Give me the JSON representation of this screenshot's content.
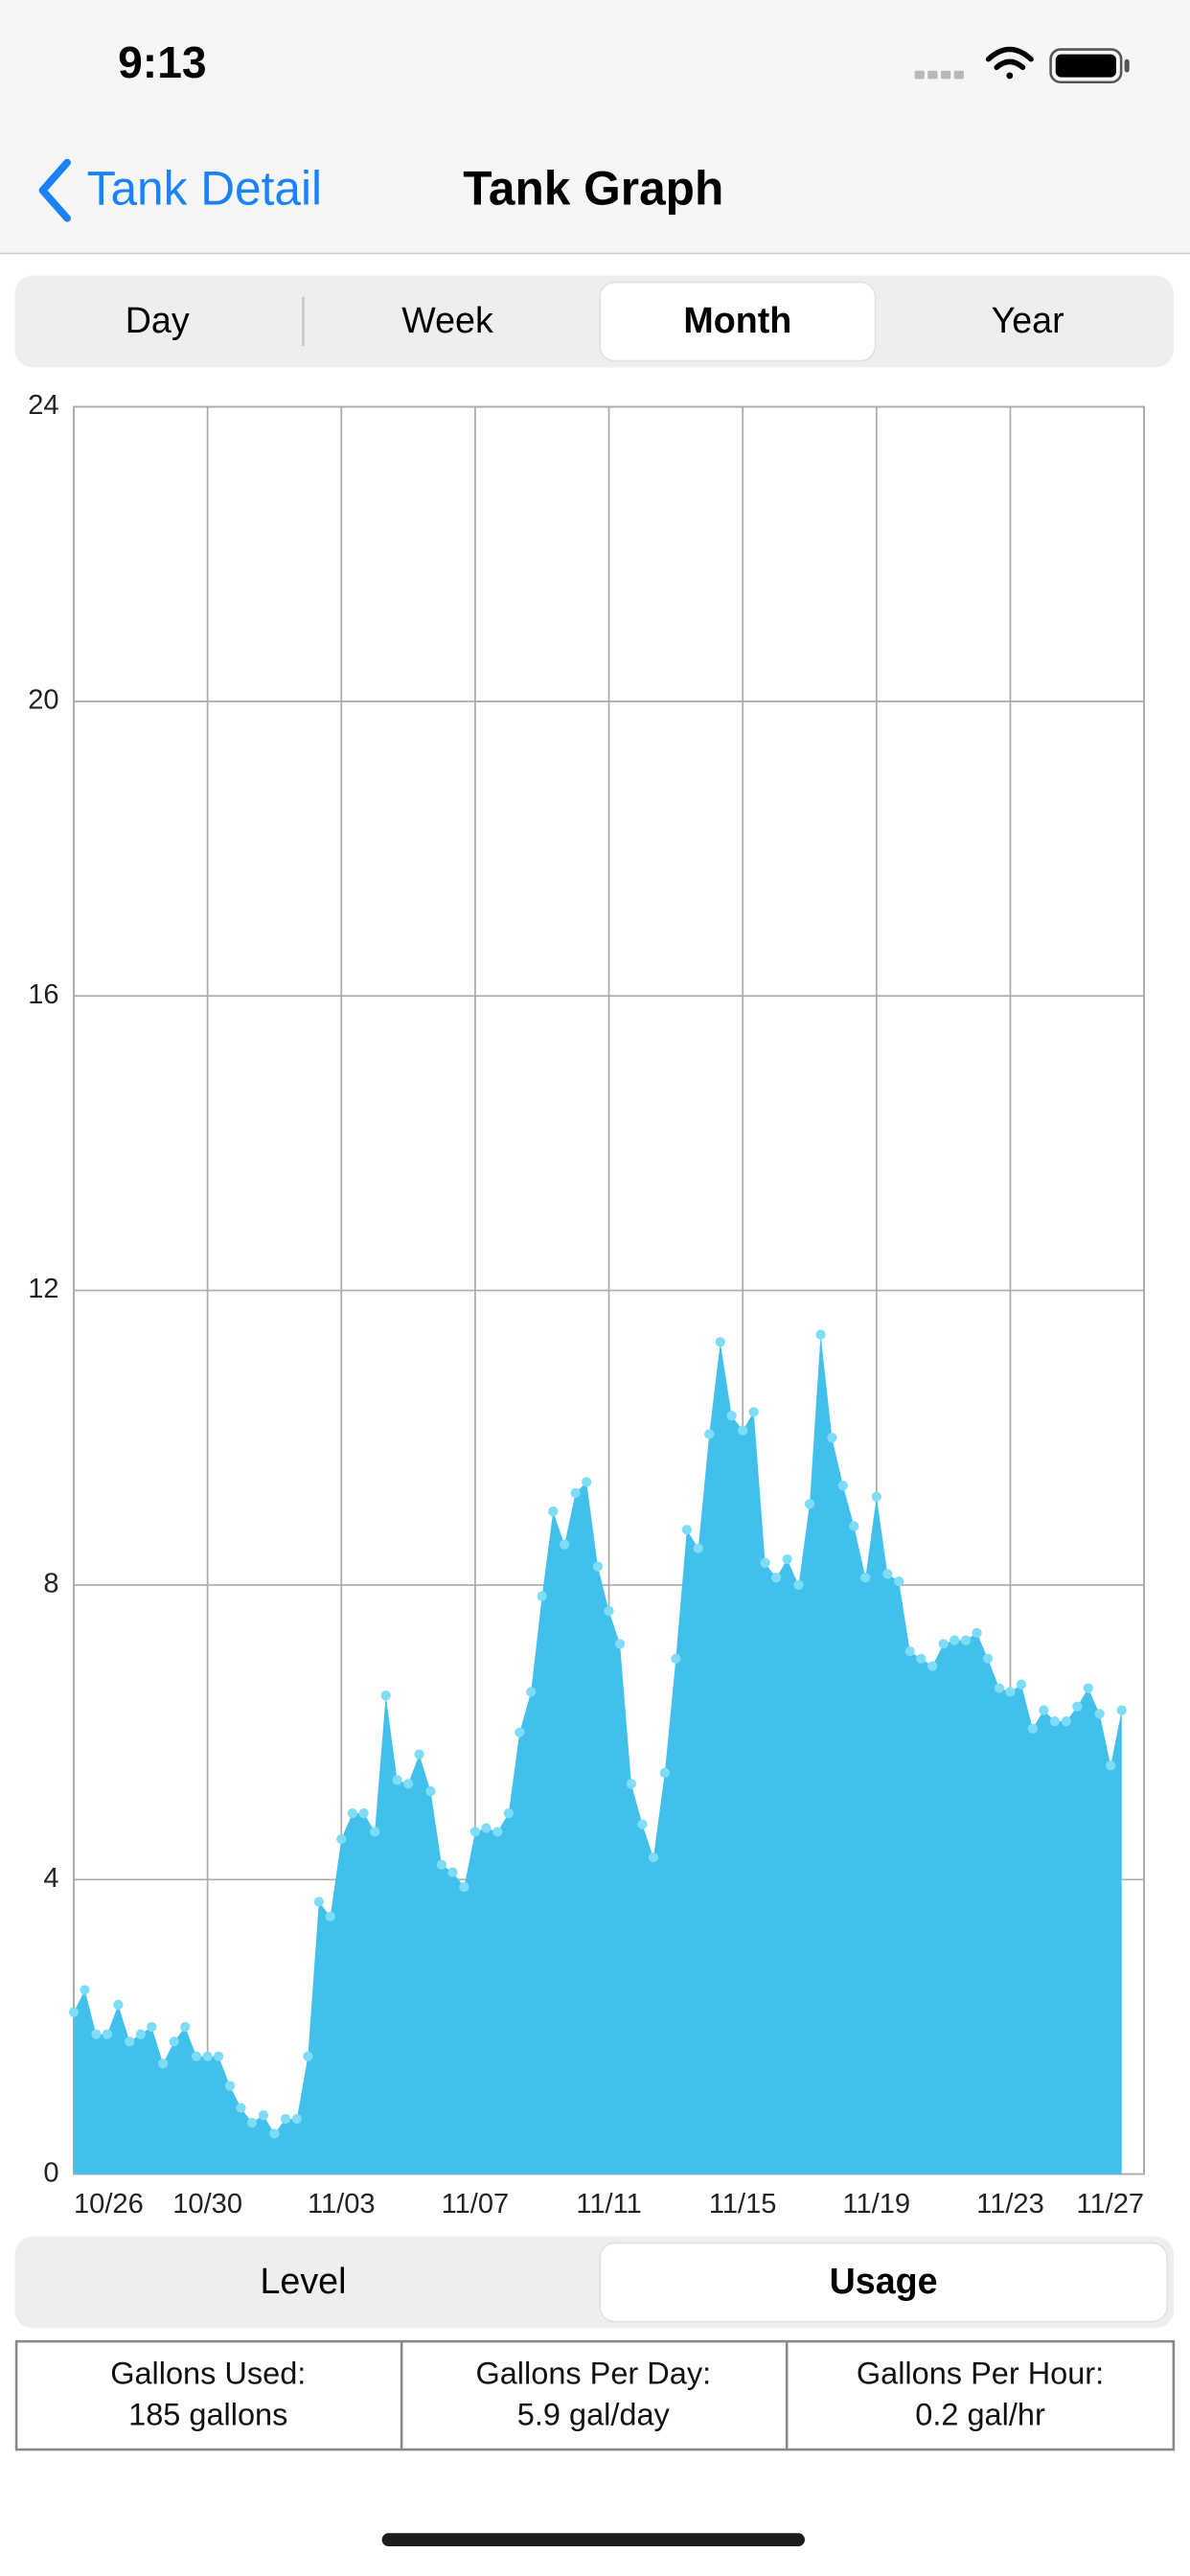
{
  "status_bar": {
    "time": "9:13"
  },
  "nav": {
    "back": "Tank Detail",
    "title": "Tank Graph"
  },
  "range_segments": [
    "Day",
    "Week",
    "Month",
    "Year"
  ],
  "mode_segments": [
    "Level",
    "Usage"
  ],
  "stats": [
    {
      "label": "Gallons Used:",
      "value": "185 gallons"
    },
    {
      "label": "Gallons Per Day:",
      "value": "5.9 gal/day"
    },
    {
      "label": "Gallons Per Hour:",
      "value": "0.2 gal/hr"
    }
  ],
  "chart_data": {
    "type": "area",
    "color": "#42c0ec",
    "marker_color": "#7fdcf6",
    "grid": true,
    "x": [
      0,
      0.33,
      0.67,
      1,
      1.33,
      1.67,
      2,
      2.33,
      2.67,
      3,
      3.33,
      3.67,
      4,
      4.33,
      4.67,
      5,
      5.33,
      5.67,
      6,
      6.33,
      6.67,
      7,
      7.33,
      7.67,
      8,
      8.33,
      8.67,
      9,
      9.33,
      9.67,
      10,
      10.33,
      10.67,
      11,
      11.33,
      11.67,
      12,
      12.33,
      12.67,
      13,
      13.33,
      13.67,
      14,
      14.33,
      14.67,
      15,
      15.33,
      15.67,
      16,
      16.33,
      16.67,
      17,
      17.33,
      17.67,
      18,
      18.33,
      18.67,
      19,
      19.33,
      19.67,
      20,
      20.33,
      20.67,
      21,
      21.33,
      21.67,
      22,
      22.33,
      22.67,
      23,
      23.33,
      23.67,
      24,
      24.33,
      24.67,
      25,
      25.33,
      25.67,
      26,
      26.33,
      26.67,
      27,
      27.33,
      27.67,
      28,
      28.33,
      28.67,
      29,
      29.33,
      29.67,
      30,
      30.33,
      30.67,
      31,
      31.33
    ],
    "values": [
      2.2,
      2.5,
      1.9,
      1.9,
      2.3,
      1.8,
      1.9,
      2.0,
      1.5,
      1.8,
      2.0,
      1.6,
      1.6,
      1.6,
      1.2,
      0.9,
      0.7,
      0.8,
      0.55,
      0.75,
      0.75,
      1.6,
      3.7,
      3.5,
      4.55,
      4.9,
      4.9,
      4.65,
      6.5,
      5.35,
      5.3,
      5.7,
      5.2,
      4.2,
      4.1,
      3.9,
      4.65,
      4.7,
      4.65,
      4.9,
      6.0,
      6.55,
      7.85,
      9.0,
      8.55,
      9.25,
      9.4,
      8.25,
      7.65,
      7.2,
      5.3,
      4.75,
      4.3,
      5.45,
      7.0,
      8.75,
      8.5,
      10.05,
      11.3,
      10.3,
      10.1,
      10.35,
      8.3,
      8.1,
      8.35,
      8.0,
      9.1,
      11.4,
      10.0,
      9.35,
      8.8,
      8.1,
      9.2,
      8.15,
      8.05,
      7.1,
      7.0,
      6.9,
      7.2,
      7.25,
      7.25,
      7.35,
      7.0,
      6.6,
      6.55,
      6.65,
      6.05,
      6.3,
      6.15,
      6.15,
      6.35,
      6.6,
      6.25,
      5.55,
      6.3
    ],
    "xlim": [
      0,
      32
    ],
    "xticks": [
      {
        "value": 0,
        "label": "10/26"
      },
      {
        "value": 4,
        "label": "10/30"
      },
      {
        "value": 8,
        "label": "11/03"
      },
      {
        "value": 12,
        "label": "11/07"
      },
      {
        "value": 16,
        "label": "11/11"
      },
      {
        "value": 20,
        "label": "11/15"
      },
      {
        "value": 24,
        "label": "11/19"
      },
      {
        "value": 28,
        "label": "11/23"
      },
      {
        "value": 32,
        "label": "11/27"
      }
    ],
    "ylim": [
      0,
      24
    ],
    "yticks": [
      0,
      4,
      8,
      12,
      16,
      20,
      24
    ]
  }
}
